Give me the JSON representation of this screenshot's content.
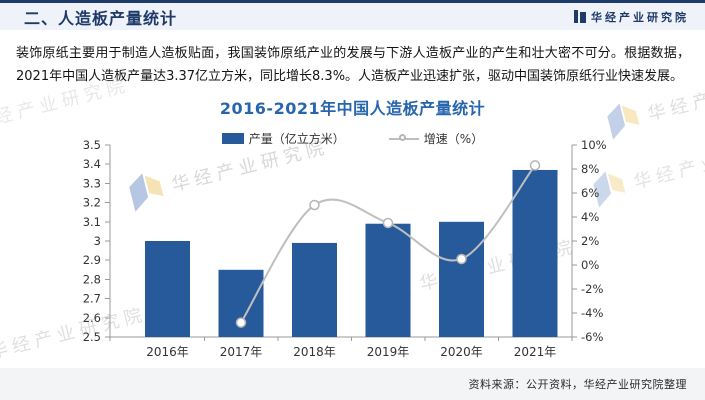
{
  "header": {
    "title": "二、人造板产量统计",
    "brand": "华经产业研究院"
  },
  "intro": {
    "text": "装饰原纸主要用于制造人造板贴面，我国装饰原纸产业的发展与下游人造板产业的产生和壮大密不可分。根据数据，2021年中国人造板产量达3.37亿立方米，同比增长8.3%。人造板产业迅速扩张，驱动中国装饰原纸行业快速发展。"
  },
  "chart_data": {
    "type": "bar",
    "title": "2016-2021年中国人造板产量统计",
    "categories": [
      "2016年",
      "2017年",
      "2018年",
      "2019年",
      "2020年",
      "2021年"
    ],
    "series": [
      {
        "name": "产量（亿立方米）",
        "kind": "bar",
        "axis": "left",
        "values": [
          3.0,
          2.85,
          2.99,
          3.09,
          3.1,
          3.37
        ]
      },
      {
        "name": "增速（%）",
        "kind": "line",
        "axis": "right",
        "values": [
          null,
          -4.8,
          5.0,
          3.5,
          0.5,
          8.3
        ]
      }
    ],
    "left_axis": {
      "min": 2.5,
      "max": 3.5,
      "step": 0.1
    },
    "right_axis": {
      "min": -6,
      "max": 10,
      "step": 2,
      "suffix": "%"
    },
    "grid": false,
    "legend_position": "top-center"
  },
  "footer": {
    "source": "资料来源：公开资料，华经产业研究院整理"
  },
  "watermark": {
    "text": "华经产业研究院"
  },
  "colors": {
    "bar": "#275a9b",
    "line": "#bfbfbf",
    "marker_stroke": "#b5b5b5",
    "axis": "#9a9a9a",
    "title_blue": "#2766ad",
    "navy": "#1e3a68",
    "wm_blue": "#a9bedd",
    "wm_yellow": "#f4dfa6"
  }
}
